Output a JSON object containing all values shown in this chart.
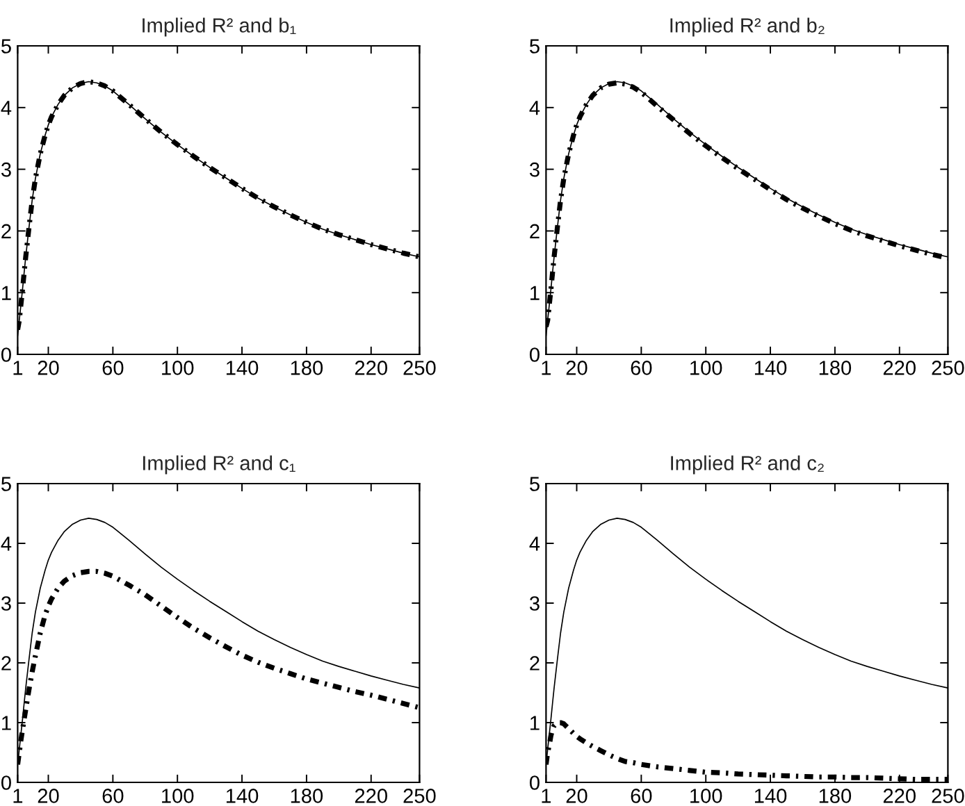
{
  "chart_data": [
    {
      "type": "line",
      "title": "Implied R² and b₁",
      "x": [
        1,
        2,
        3,
        4,
        5,
        6,
        8,
        10,
        12,
        15,
        18,
        20,
        22,
        26,
        30,
        35,
        40,
        45,
        50,
        55,
        60,
        70,
        80,
        90,
        100,
        110,
        120,
        130,
        140,
        150,
        160,
        170,
        180,
        190,
        200,
        210,
        220,
        230,
        240,
        250
      ],
      "xlim": [
        1,
        250
      ],
      "xticks": [
        1,
        20,
        60,
        100,
        140,
        180,
        220,
        250
      ],
      "ylim": [
        0,
        5
      ],
      "yticks": [
        0,
        1,
        2,
        3,
        4,
        5
      ],
      "series": [
        {
          "color": "#000000",
          "line_style": "solid",
          "values": [
            0.3,
            0.55,
            0.8,
            1.05,
            1.32,
            1.58,
            2.05,
            2.5,
            2.85,
            3.25,
            3.55,
            3.72,
            3.85,
            4.05,
            4.2,
            4.32,
            4.39,
            4.42,
            4.4,
            4.35,
            4.27,
            4.05,
            3.82,
            3.6,
            3.4,
            3.21,
            3.03,
            2.86,
            2.69,
            2.53,
            2.39,
            2.26,
            2.14,
            2.03,
            1.94,
            1.86,
            1.78,
            1.71,
            1.64,
            1.58
          ]
        },
        {
          "color": "#000000",
          "line_style": "dashdot",
          "values": [
            0.4,
            0.55,
            0.8,
            1.05,
            1.32,
            1.58,
            2.05,
            2.5,
            2.85,
            3.25,
            3.55,
            3.72,
            3.85,
            4.05,
            4.2,
            4.32,
            4.39,
            4.42,
            4.4,
            4.35,
            4.27,
            4.05,
            3.82,
            3.6,
            3.4,
            3.21,
            3.03,
            2.86,
            2.69,
            2.53,
            2.39,
            2.26,
            2.14,
            2.03,
            1.94,
            1.86,
            1.78,
            1.71,
            1.64,
            1.58
          ]
        }
      ]
    },
    {
      "type": "line",
      "title": "Implied R² and b₂",
      "x": [
        1,
        2,
        3,
        4,
        5,
        6,
        8,
        10,
        12,
        15,
        18,
        20,
        22,
        26,
        30,
        35,
        40,
        45,
        50,
        55,
        60,
        70,
        80,
        90,
        100,
        110,
        120,
        130,
        140,
        150,
        160,
        170,
        180,
        190,
        200,
        210,
        220,
        230,
        240,
        250
      ],
      "xlim": [
        1,
        250
      ],
      "xticks": [
        1,
        20,
        60,
        100,
        140,
        180,
        220,
        250
      ],
      "ylim": [
        0,
        5
      ],
      "yticks": [
        0,
        1,
        2,
        3,
        4,
        5
      ],
      "series": [
        {
          "color": "#000000",
          "line_style": "solid",
          "values": [
            0.3,
            0.55,
            0.8,
            1.05,
            1.32,
            1.58,
            2.05,
            2.5,
            2.85,
            3.25,
            3.55,
            3.72,
            3.85,
            4.05,
            4.2,
            4.32,
            4.39,
            4.42,
            4.4,
            4.35,
            4.27,
            4.05,
            3.82,
            3.6,
            3.4,
            3.21,
            3.03,
            2.86,
            2.69,
            2.53,
            2.39,
            2.26,
            2.14,
            2.03,
            1.94,
            1.86,
            1.78,
            1.71,
            1.64,
            1.58
          ]
        },
        {
          "color": "#000000",
          "line_style": "dashdot",
          "values": [
            0.45,
            0.55,
            0.8,
            1.05,
            1.32,
            1.58,
            2.05,
            2.5,
            2.85,
            3.25,
            3.55,
            3.72,
            3.85,
            4.05,
            4.2,
            4.32,
            4.38,
            4.4,
            4.38,
            4.33,
            4.25,
            4.02,
            3.8,
            3.58,
            3.38,
            3.19,
            3.01,
            2.84,
            2.67,
            2.51,
            2.37,
            2.24,
            2.12,
            2.01,
            1.92,
            1.84,
            1.76,
            1.69,
            1.62,
            1.56
          ]
        }
      ]
    },
    {
      "type": "line",
      "title": "Implied R² and c₁",
      "x": [
        1,
        2,
        3,
        4,
        5,
        6,
        8,
        10,
        12,
        15,
        18,
        20,
        22,
        26,
        30,
        35,
        40,
        45,
        50,
        55,
        60,
        70,
        80,
        90,
        100,
        110,
        120,
        130,
        140,
        150,
        160,
        170,
        180,
        190,
        200,
        210,
        220,
        230,
        240,
        250
      ],
      "xlim": [
        1,
        250
      ],
      "xticks": [
        1,
        20,
        60,
        100,
        140,
        180,
        220,
        250
      ],
      "ylim": [
        0,
        5
      ],
      "yticks": [
        0,
        1,
        2,
        3,
        4,
        5
      ],
      "series": [
        {
          "color": "#000000",
          "line_style": "solid",
          "values": [
            0.3,
            0.55,
            0.8,
            1.05,
            1.32,
            1.58,
            2.05,
            2.5,
            2.85,
            3.25,
            3.55,
            3.72,
            3.85,
            4.05,
            4.2,
            4.32,
            4.39,
            4.42,
            4.4,
            4.35,
            4.27,
            4.05,
            3.82,
            3.6,
            3.4,
            3.21,
            3.03,
            2.86,
            2.69,
            2.53,
            2.39,
            2.26,
            2.14,
            2.03,
            1.94,
            1.86,
            1.78,
            1.71,
            1.64,
            1.58
          ]
        },
        {
          "color": "#000000",
          "line_style": "dashdot",
          "values": [
            0.3,
            0.5,
            0.7,
            0.88,
            1.05,
            1.22,
            1.55,
            1.85,
            2.12,
            2.5,
            2.8,
            2.95,
            3.07,
            3.25,
            3.37,
            3.46,
            3.51,
            3.53,
            3.53,
            3.5,
            3.45,
            3.3,
            3.14,
            2.95,
            2.76,
            2.58,
            2.42,
            2.27,
            2.13,
            2.01,
            1.91,
            1.82,
            1.73,
            1.66,
            1.59,
            1.52,
            1.46,
            1.39,
            1.32,
            1.25
          ]
        }
      ]
    },
    {
      "type": "line",
      "title": "Implied R² and c₂",
      "x": [
        1,
        2,
        3,
        4,
        5,
        6,
        8,
        10,
        12,
        15,
        18,
        20,
        22,
        26,
        30,
        35,
        40,
        45,
        50,
        55,
        60,
        70,
        80,
        90,
        100,
        110,
        120,
        130,
        140,
        150,
        160,
        170,
        180,
        190,
        200,
        210,
        220,
        230,
        240,
        250
      ],
      "xlim": [
        1,
        250
      ],
      "xticks": [
        1,
        20,
        60,
        100,
        140,
        180,
        220,
        250
      ],
      "ylim": [
        0,
        5
      ],
      "yticks": [
        0,
        1,
        2,
        3,
        4,
        5
      ],
      "series": [
        {
          "color": "#000000",
          "line_style": "solid",
          "values": [
            0.3,
            0.55,
            0.8,
            1.05,
            1.32,
            1.58,
            2.05,
            2.5,
            2.85,
            3.25,
            3.55,
            3.72,
            3.85,
            4.05,
            4.2,
            4.32,
            4.39,
            4.42,
            4.4,
            4.35,
            4.27,
            4.05,
            3.82,
            3.6,
            3.4,
            3.21,
            3.03,
            2.86,
            2.69,
            2.53,
            2.39,
            2.26,
            2.14,
            2.03,
            1.94,
            1.86,
            1.78,
            1.71,
            1.64,
            1.58
          ]
        },
        {
          "color": "#000000",
          "line_style": "dashdot",
          "values": [
            0.3,
            0.5,
            0.62,
            0.78,
            0.88,
            0.95,
            1.0,
            1.0,
            0.98,
            0.9,
            0.82,
            0.77,
            0.73,
            0.66,
            0.6,
            0.53,
            0.46,
            0.4,
            0.35,
            0.33,
            0.3,
            0.26,
            0.23,
            0.2,
            0.17,
            0.16,
            0.14,
            0.13,
            0.12,
            0.11,
            0.1,
            0.09,
            0.09,
            0.08,
            0.08,
            0.07,
            0.06,
            0.05,
            0.05,
            0.05
          ]
        }
      ]
    }
  ]
}
